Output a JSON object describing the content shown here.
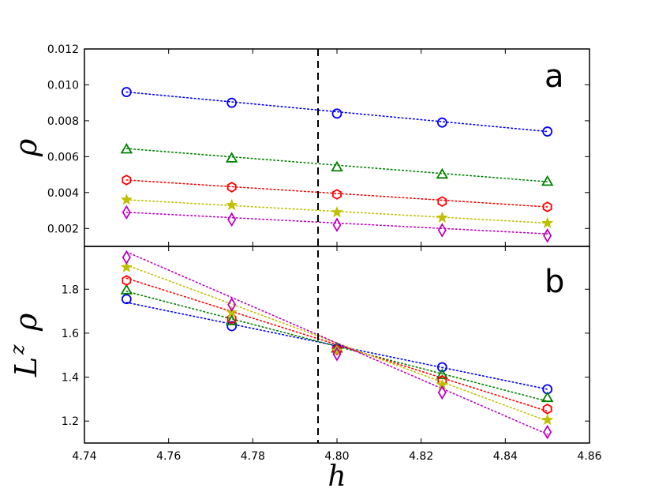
{
  "chart_data": {
    "type": "scatter",
    "x": [
      4.75,
      4.775,
      4.8,
      4.825,
      4.85
    ],
    "xlim": [
      4.74,
      4.86
    ],
    "xticks": [
      "4.74",
      "4.76",
      "4.78",
      "4.80",
      "4.82",
      "4.84",
      "4.86"
    ],
    "xlabel": "h",
    "critical_h": 4.7955,
    "series_colors": [
      "#0000ff",
      "#008000",
      "#ff0000",
      "#bfbf00",
      "#bf00bf"
    ],
    "series_markers": [
      "circle",
      "triangle",
      "hexagon",
      "star",
      "diamond"
    ],
    "panels": [
      {
        "letter": "a",
        "ylabel": "ρ",
        "ylim": [
          0.001,
          0.012
        ],
        "yticks": [
          "0.002",
          "0.004",
          "0.006",
          "0.008",
          "0.010",
          "0.012"
        ],
        "series": [
          {
            "values": [
              0.0096,
              0.009,
              0.0084,
              0.0079,
              0.0074
            ]
          },
          {
            "values": [
              0.0064,
              0.0059,
              0.0054,
              0.005,
              0.0046
            ]
          },
          {
            "values": [
              0.0047,
              0.0043,
              0.0039,
              0.0035,
              0.0032
            ]
          },
          {
            "values": [
              0.0036,
              0.0033,
              0.0029,
              0.0026,
              0.0023
            ]
          },
          {
            "values": [
              0.0029,
              0.0025,
              0.0022,
              0.0019,
              0.0016
            ]
          }
        ],
        "fits": [
          {
            "y0": 0.0096,
            "y1": 0.0074
          },
          {
            "y0": 0.00645,
            "y1": 0.0046
          },
          {
            "y0": 0.0047,
            "y1": 0.0032
          },
          {
            "y0": 0.0036,
            "y1": 0.0023
          },
          {
            "y0": 0.0029,
            "y1": 0.0017
          }
        ]
      },
      {
        "letter": "b",
        "ylabel": "L",
        "ylabel_sup": "z",
        "ylabel_tail": "ρ",
        "ylim": [
          1.1,
          1.995
        ],
        "yticks": [
          "1.2",
          "1.4",
          "1.6",
          "1.8"
        ],
        "series": [
          {
            "values": [
              1.755,
              1.632,
              1.53,
              1.445,
              1.345
            ]
          },
          {
            "values": [
              1.795,
              1.655,
              1.53,
              1.41,
              1.305
            ]
          },
          {
            "values": [
              1.84,
              1.665,
              1.525,
              1.385,
              1.255
            ]
          },
          {
            "values": [
              1.9,
              1.695,
              1.52,
              1.365,
              1.205
            ]
          },
          {
            "values": [
              1.945,
              1.73,
              1.505,
              1.33,
              1.15
            ]
          }
        ],
        "fits": [
          {
            "y0": 1.74,
            "y1": 1.345
          },
          {
            "y0": 1.79,
            "y1": 1.29
          },
          {
            "y0": 1.85,
            "y1": 1.245
          },
          {
            "y0": 1.91,
            "y1": 1.2
          },
          {
            "y0": 1.97,
            "y1": 1.14
          }
        ]
      }
    ]
  }
}
